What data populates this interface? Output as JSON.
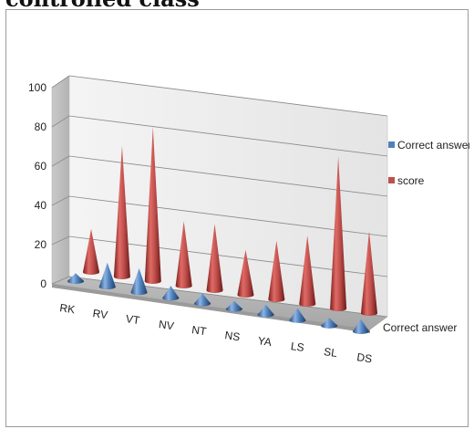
{
  "page": {
    "title": "controlled class"
  },
  "chart_data": {
    "type": "bar",
    "style": "3D cone chart",
    "title": "",
    "xlabel": "",
    "ylabel": "",
    "ylim": [
      0,
      100
    ],
    "yticks": [
      0,
      20,
      40,
      60,
      80,
      100
    ],
    "grid": true,
    "categories": [
      "RK",
      "RV",
      "VT",
      "NV",
      "NT",
      "NS",
      "YA",
      "LS",
      "SL",
      "DS"
    ],
    "series": [
      {
        "name": "Correct answer",
        "color": "#4f81bd",
        "values": [
          4,
          12,
          12,
          6,
          5,
          4,
          5,
          6,
          4,
          6
        ]
      },
      {
        "name": "score",
        "color": "#c0504d",
        "values": [
          22,
          67,
          79,
          33,
          34,
          23,
          30,
          35,
          78,
          42
        ]
      }
    ],
    "legend": {
      "position": "right",
      "entries": [
        "Correct answer",
        "score"
      ]
    },
    "depth_axis_label": "Correct answer"
  }
}
